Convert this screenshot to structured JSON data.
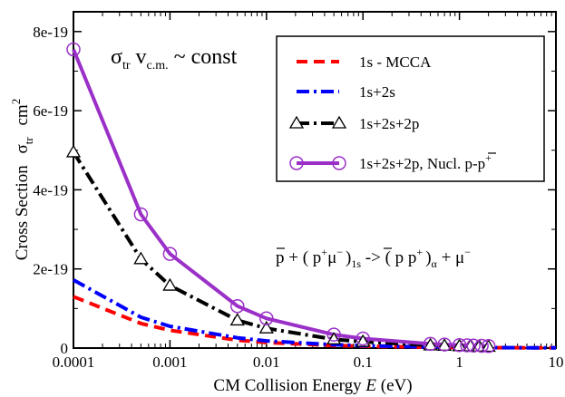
{
  "chart_data": {
    "type": "line",
    "xscale": "log",
    "xlim": [
      0.0001,
      10
    ],
    "ylim": [
      0,
      8.5e-19
    ],
    "x_ticks": [
      {
        "value": 0.0001,
        "label": "0.0001"
      },
      {
        "value": 0.001,
        "label": "0.001"
      },
      {
        "value": 0.01,
        "label": "0.01"
      },
      {
        "value": 0.1,
        "label": "0.1"
      },
      {
        "value": 1,
        "label": "1"
      },
      {
        "value": 10,
        "label": "10"
      }
    ],
    "y_ticks": [
      {
        "value": 0,
        "label": "0"
      },
      {
        "value": 2e-19,
        "label": "2e-19"
      },
      {
        "value": 4e-19,
        "label": "4e-19"
      },
      {
        "value": 6e-19,
        "label": "6e-19"
      },
      {
        "value": 8e-19,
        "label": "8e-19"
      }
    ],
    "xlabel_main": "CM Collision Energy",
    "xlabel_var": "E",
    "xlabel_unit": "(eV)",
    "ylabel_main": "Cross Section",
    "ylabel_sigma": "σ",
    "ylabel_sub": "tr",
    "ylabel_unit": "cm",
    "ylabel_sup": "2",
    "annotation_law": {
      "sigma": "σ",
      "tr": "tr",
      "v": "v",
      "cm": "c.m.",
      "rest": "~ const"
    },
    "annotation_reaction": {
      "pbar": "p",
      "plus1": "+ (",
      "p": "p",
      "p_sup": "+",
      "mu": "μ",
      "mu_sup": "−",
      "close1": ")",
      "sub_1s": "1s",
      "arrow": "-> (",
      "pbar2": "p",
      "p2": "p",
      "p2_sup": "+",
      "close2": ")",
      "sub_alpha": "α",
      "plus2": "+ μ",
      "mu2_sup": "−"
    },
    "series": [
      {
        "name": "1s - MCCA",
        "color": "#ff0000",
        "style": "dash",
        "x": [
          0.0001,
          0.0005,
          0.001,
          0.005,
          0.01,
          0.05,
          0.1,
          0.5,
          1,
          5,
          10
        ],
        "y": [
          1.3e-19,
          6.2e-20,
          4.5e-20,
          2e-20,
          1.4e-20,
          6.5e-21,
          4.5e-21,
          2e-21,
          1.4e-21,
          6e-22,
          4e-22
        ]
      },
      {
        "name": "1s+2s",
        "color": "#0000ff",
        "style": "dashdot",
        "x": [
          0.0001,
          0.0005,
          0.001,
          0.005,
          0.01,
          0.05,
          0.1,
          0.5,
          1,
          5,
          10
        ],
        "y": [
          1.72e-19,
          7.8e-20,
          5.5e-20,
          2.6e-20,
          1.8e-20,
          8.5e-21,
          6e-21,
          2.6e-21,
          1.8e-21,
          8e-22,
          5e-22
        ]
      },
      {
        "name": "1s+2s+2p",
        "color": "#000000",
        "style": "dashdot",
        "marker": "triangle",
        "x": [
          0.0001,
          0.0005,
          0.001,
          0.005,
          0.01,
          0.05,
          0.1,
          0.5,
          0.7,
          1,
          1.3,
          1.6,
          2
        ],
        "y": [
          4.95e-19,
          2.25e-19,
          1.58e-19,
          7e-20,
          5e-20,
          2.2e-20,
          1.6e-20,
          7e-21,
          6e-21,
          5e-21,
          4.4e-21,
          4e-21,
          3.5e-21
        ]
      },
      {
        "name": "1s+2s+2p, Nucl. p̄-p⁺",
        "label_main": "1s+2s+2p, Nucl.",
        "label_pbar": "p",
        "label_dash": "-p",
        "label_sup": "+",
        "color": "#9b30c8",
        "style": "solid",
        "marker": "circle",
        "x": [
          0.0001,
          0.0005,
          0.001,
          0.005,
          0.01,
          0.05,
          0.1,
          0.5,
          0.7,
          1,
          1.2,
          1.4,
          1.7,
          2
        ],
        "y": [
          7.55e-19,
          3.38e-19,
          2.38e-19,
          1.06e-19,
          7.5e-20,
          3.4e-20,
          2.4e-20,
          1.05e-20,
          9e-21,
          7.5e-21,
          6.8e-21,
          6.3e-21,
          5.7e-21,
          5.2e-21
        ]
      }
    ]
  }
}
